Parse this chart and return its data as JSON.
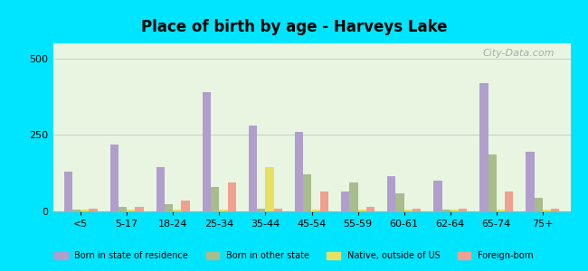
{
  "title": "Place of birth by age - Harveys Lake",
  "categories": [
    "<5",
    "5-17",
    "18-24",
    "25-34",
    "35-44",
    "45-54",
    "55-59",
    "60-61",
    "62-64",
    "65-74",
    "75+"
  ],
  "series": {
    "Born in state of residence": [
      130,
      220,
      145,
      390,
      280,
      260,
      65,
      115,
      100,
      420,
      195
    ],
    "Born in other state": [
      5,
      15,
      25,
      80,
      10,
      120,
      95,
      60,
      5,
      185,
      45
    ],
    "Native, outside of US": [
      5,
      5,
      5,
      5,
      145,
      5,
      5,
      5,
      5,
      5,
      5
    ],
    "Foreign-born": [
      10,
      15,
      35,
      95,
      10,
      65,
      15,
      10,
      10,
      65,
      10
    ]
  },
  "colors": {
    "Born in state of residence": "#b09fcc",
    "Born in other state": "#a8bc8c",
    "Native, outside of US": "#e8e060",
    "Foreign-born": "#f0a090"
  },
  "ylim": [
    0,
    550
  ],
  "yticks": [
    0,
    250,
    500
  ],
  "background_top": "#e8f5e0",
  "background_bottom": "#f5ffe8",
  "outer_background": "#00e5ff",
  "watermark": "City-Data.com"
}
